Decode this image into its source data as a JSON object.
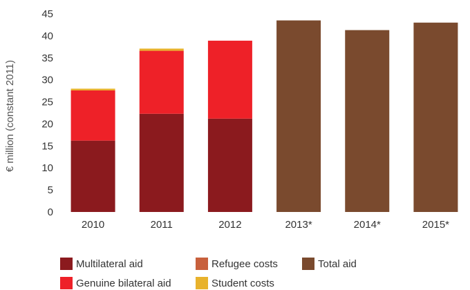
{
  "chart_data": {
    "type": "bar",
    "stacked": true,
    "ylabel": "€ million (constant 2011)",
    "ylim": [
      0,
      45
    ],
    "yticks": [
      0,
      5,
      10,
      15,
      20,
      25,
      30,
      35,
      40,
      45
    ],
    "grid": false,
    "legend_position": "bottom",
    "categories": [
      "2010",
      "2011",
      "2012",
      "2013*",
      "2014*",
      "2015*"
    ],
    "series": [
      {
        "name": "Multilateral aid",
        "color": "#8b1a1e",
        "values": [
          16.2,
          22.3,
          21.2,
          0,
          0,
          0
        ]
      },
      {
        "name": "Genuine bilateral aid",
        "color": "#ee2128",
        "values": [
          11.4,
          14.3,
          17.7,
          0,
          0,
          0
        ]
      },
      {
        "name": "Refugee costs",
        "color": "#c8603c",
        "values": [
          0,
          0,
          0,
          0,
          0,
          0
        ]
      },
      {
        "name": "Student costs",
        "color": "#e8b22c",
        "values": [
          0.4,
          0.5,
          0,
          0,
          0,
          0
        ]
      },
      {
        "name": "Total aid",
        "color": "#7a4a2e",
        "values": [
          0,
          0,
          0,
          43.5,
          41.3,
          43.0
        ]
      }
    ]
  }
}
